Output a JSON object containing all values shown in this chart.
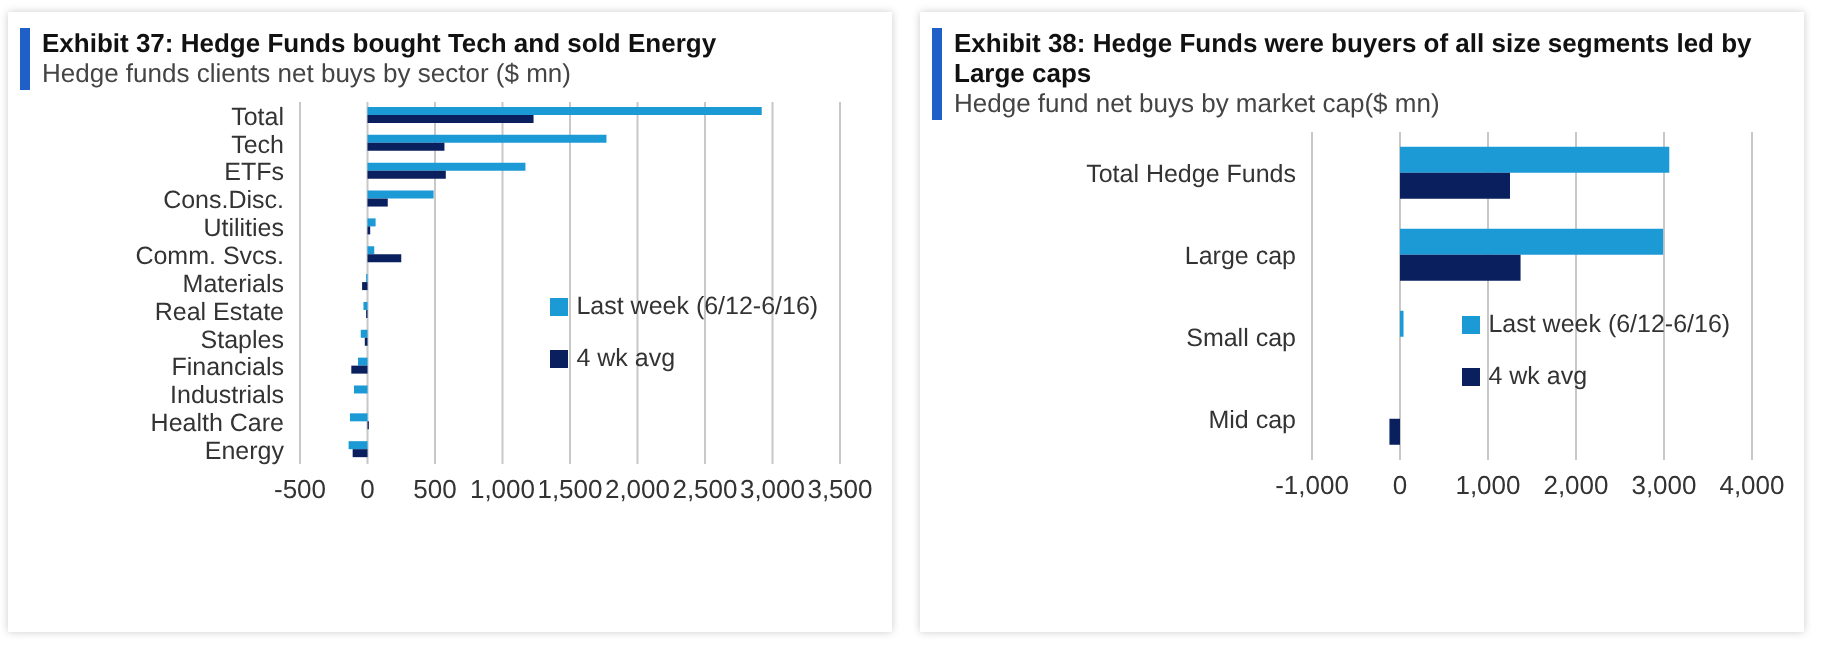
{
  "chart_data": [
    {
      "type": "bar",
      "orientation": "horizontal",
      "title": "Exhibit 37: Hedge Funds bought Tech and sold Energy",
      "subtitle": "Hedge funds clients net buys by sector ($ mn)",
      "categories": [
        "Total",
        "Tech",
        "ETFs",
        "Cons.Disc.",
        "Utilities",
        "Comm. Svcs.",
        "Materials",
        "Real Estate",
        "Staples",
        "Financials",
        "Industrials",
        "Health Care",
        "Energy"
      ],
      "series": [
        {
          "name": "Last week (6/12-6/16)",
          "color": "#1b9ad6",
          "values": [
            2920,
            1770,
            1170,
            490,
            60,
            50,
            -10,
            -30,
            -50,
            -70,
            -100,
            -130,
            -140
          ]
        },
        {
          "name": "4 wk avg",
          "color": "#0a1f5e",
          "values": [
            1230,
            570,
            580,
            150,
            20,
            250,
            -40,
            -10,
            -20,
            -120,
            0,
            10,
            -110
          ]
        }
      ],
      "xlim": [
        -500,
        3500
      ],
      "xticks": [
        -500,
        {
          "value": 0,
          "label": "0"
        },
        {
          "value": 500,
          "label": "500"
        },
        {
          "value": 1000,
          "label": "1,000"
        },
        {
          "value": 1500,
          "label": "1,500"
        },
        {
          "value": 2000,
          "label": "2,000"
        },
        {
          "value": 2500,
          "label": "2,500"
        },
        {
          "value": 3000,
          "label": "3,000"
        },
        {
          "value": 3500,
          "label": "3,500"
        }
      ],
      "grid": "x",
      "legend": "right"
    },
    {
      "type": "bar",
      "orientation": "horizontal",
      "title": "Exhibit 38: Hedge Funds were buyers of all size segments led by Large caps",
      "subtitle": "Hedge fund net buys by market cap($ mn)",
      "categories": [
        "Total Hedge Funds",
        "Large cap",
        "Small cap",
        "Mid cap"
      ],
      "series": [
        {
          "name": "Last week (6/12-6/16)",
          "color": "#1b9ad6",
          "values": [
            3060,
            2990,
            40,
            0
          ]
        },
        {
          "name": "4 wk avg",
          "color": "#0a1f5e",
          "values": [
            1250,
            1370,
            0,
            -120
          ]
        }
      ],
      "xlim": [
        -1000,
        4000
      ],
      "xticks": [
        {
          "value": -1000,
          "label": "-1,000"
        },
        0,
        {
          "value": 1000,
          "label": "1,000"
        },
        {
          "value": 2000,
          "label": "2,000"
        },
        {
          "value": 3000,
          "label": "3,000"
        },
        {
          "value": 4000,
          "label": "4,000"
        }
      ],
      "grid": "x",
      "legend": "right"
    }
  ]
}
